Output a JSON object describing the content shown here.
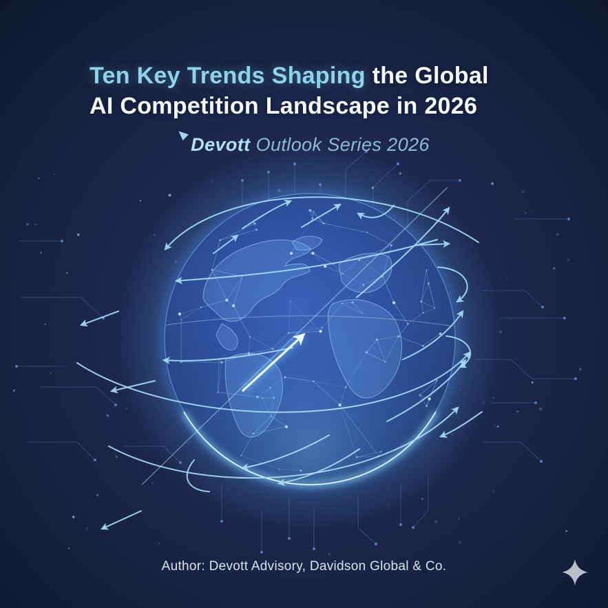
{
  "poster": {
    "title": {
      "line1_highlight": "Ten Key Trends Shaping",
      "line1_rest": " the Global",
      "line2": "AI Competition Landscape in 2026"
    },
    "subtitle": {
      "brand": "Devott",
      "series": "Outlook Series 2026"
    },
    "footer": {
      "author": "Author: Devott Advisory, Davidson Global & Co."
    }
  },
  "colors": {
    "background_center": "#243260",
    "background_edge": "#0f1830",
    "title_highlight": "#8ed3ea",
    "title_white": "#f5f7fb",
    "subtitle_brand": "#b2e0f4",
    "subtitle_text": "#8fb9d9",
    "footer_text": "#dce3ee",
    "globe_blue": "#30519f",
    "glow_cyan": "#8fdcff",
    "arrow": "#a8dcf8",
    "circuit": "#47669e",
    "sparkle": "#b9bfca"
  },
  "icons": {
    "logo_mark": "devott-logo-mark",
    "sparkle": "four-point-sparkle",
    "illustration": "digital-globe-with-orbit-arrows"
  }
}
